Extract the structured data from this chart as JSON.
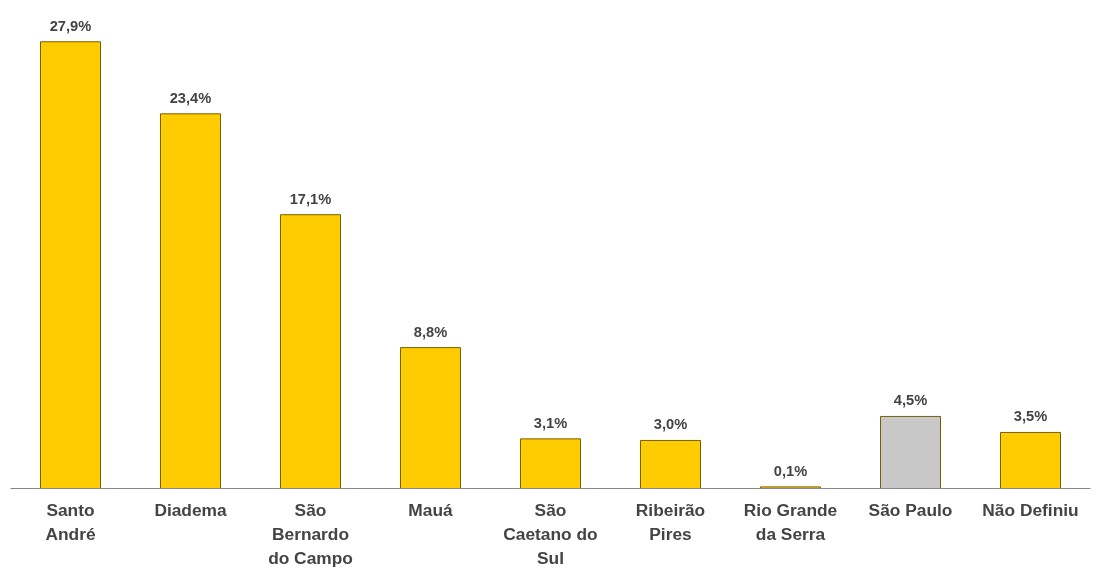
{
  "chart_data": {
    "type": "bar",
    "categories": [
      "Santo\nAndré",
      "Diadema",
      "São\nBernardo\ndo Campo",
      "Mauá",
      "São\nCaetano do\nSul",
      "Ribeirão\nPires",
      "Rio Grande\nda Serra",
      "São Paulo",
      "Não Definiu"
    ],
    "values": [
      27.9,
      23.4,
      17.1,
      8.8,
      3.1,
      3.0,
      0.1,
      4.5,
      3.5
    ],
    "value_labels": [
      "27,9%",
      "23,4%",
      "17,1%",
      "8,8%",
      "3,1%",
      "3,0%",
      "0,1%",
      "4,5%",
      "3,5%"
    ],
    "colors": [
      "#ffcc00",
      "#ffcc00",
      "#ffcc00",
      "#ffcc00",
      "#ffcc00",
      "#ffcc00",
      "#ffcc00",
      "#c8c8c8",
      "#ffcc00"
    ],
    "grid": false
  }
}
